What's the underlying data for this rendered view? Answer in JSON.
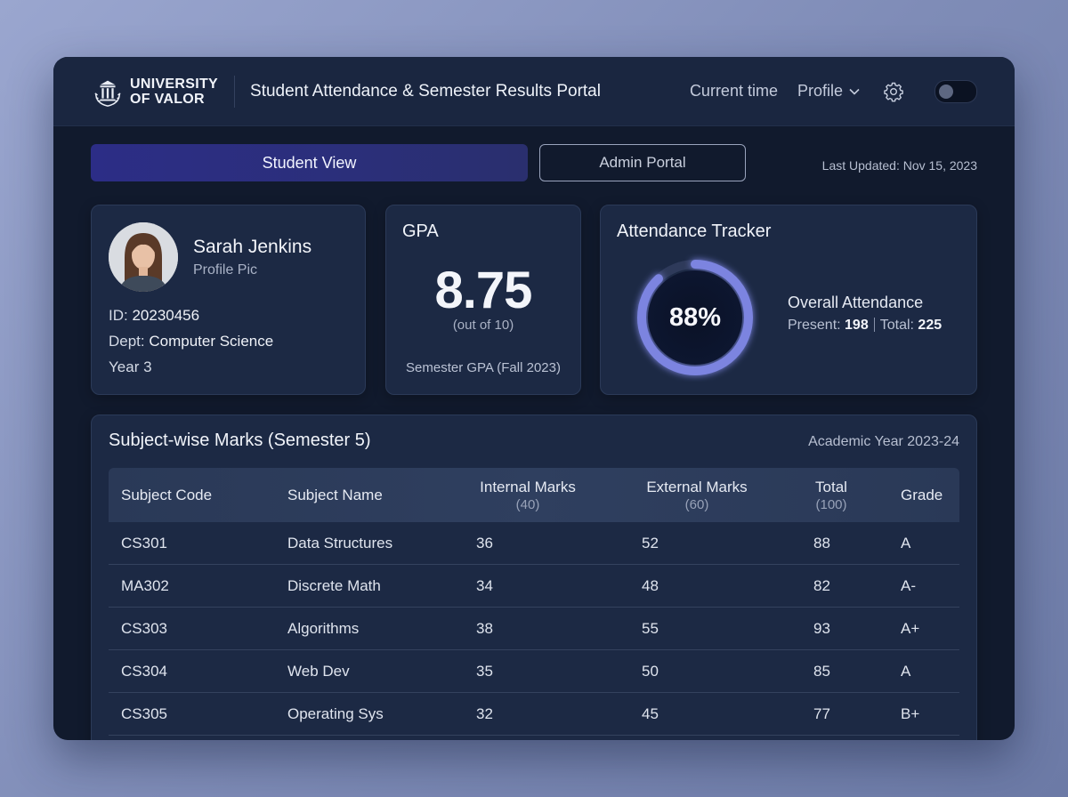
{
  "header": {
    "logo_line1": "UNIVERSITY",
    "logo_line2": "OF VALOR",
    "app_title": "Student Attendance & Semester Results Portal",
    "current_time": "Current time",
    "profile": "Profile"
  },
  "tabs": {
    "student": "Student View",
    "admin": "Admin Portal",
    "last_updated": "Last Updated: Nov 15, 2023"
  },
  "profile": {
    "name": "Sarah Jenkins",
    "pic_label": "Profile Pic",
    "id_label": "ID: ",
    "id_value": "20230456",
    "dept_label": "Dept: ",
    "dept_value": "Computer Science",
    "year": "Year 3"
  },
  "gpa": {
    "title": "GPA",
    "value": "8.75",
    "out_of": "(out of 10)",
    "semester": "Semester GPA (Fall 2023)"
  },
  "attendance": {
    "title": "Attendance Tracker",
    "percent_label": "88%",
    "percent_value": 88,
    "overall_label": "Overall Attendance",
    "present_label": "Present: ",
    "present_value": "198",
    "total_label": "Total: ",
    "total_value": "225"
  },
  "marks": {
    "title": "Subject-wise Marks (Semester 5)",
    "academic_year": "Academic Year 2023-24",
    "columns": [
      {
        "label": "Subject Code",
        "sub": ""
      },
      {
        "label": "Subject Name",
        "sub": ""
      },
      {
        "label": "Internal Marks",
        "sub": "(40)"
      },
      {
        "label": "External Marks",
        "sub": "(60)"
      },
      {
        "label": "Total",
        "sub": "(100)"
      },
      {
        "label": "Grade",
        "sub": ""
      }
    ],
    "rows": [
      [
        "CS301",
        "Data Structures",
        "36",
        "52",
        "88",
        "A"
      ],
      [
        "MA302",
        "Discrete Math",
        "34",
        "48",
        "82",
        "A-"
      ],
      [
        "CS303",
        "Algorithms",
        "38",
        "55",
        "93",
        "A+"
      ],
      [
        "CS304",
        "Web Dev",
        "35",
        "50",
        "85",
        "A"
      ],
      [
        "CS305",
        "Operating Sys",
        "32",
        "45",
        "77",
        "B+"
      ]
    ]
  },
  "colors": {
    "accent": "#2c2d86",
    "ring": "#7b84e0",
    "card": "#1c2944",
    "background": "#111a2d"
  }
}
